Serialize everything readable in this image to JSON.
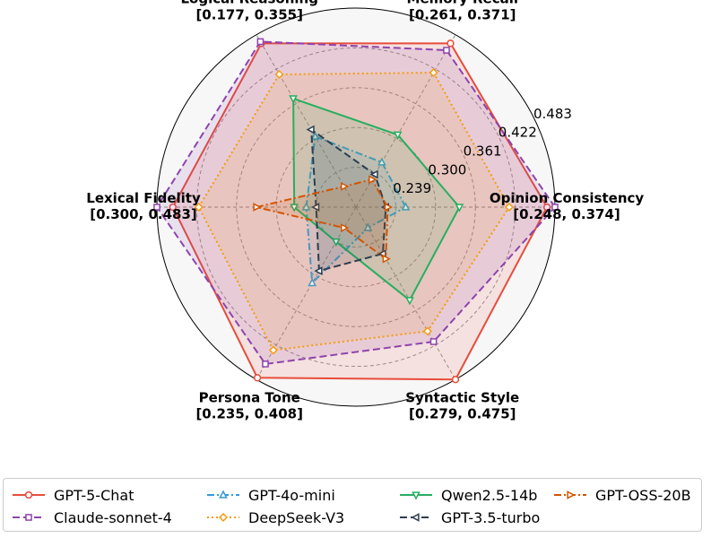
{
  "chart_data": {
    "type": "radar",
    "axes": [
      {
        "name": "Opinion Consistency",
        "range_label": "[0.248, 0.374]"
      },
      {
        "name": "Memory Recall",
        "range_label": "[0.261, 0.371]"
      },
      {
        "name": "Logical Reasoning",
        "range_label": "[0.177, 0.355]"
      },
      {
        "name": "Lexical Fidelity",
        "range_label": "[0.300, 0.483]"
      },
      {
        "name": "Persona Tone",
        "range_label": "[0.235, 0.408]"
      },
      {
        "name": "Syntactic Style",
        "range_label": "[0.279, 0.475]"
      }
    ],
    "radial_ticks": [
      "0.239",
      "0.300",
      "0.361",
      "0.422",
      "0.483"
    ],
    "radial_tick_positions": [
      0.2,
      0.4,
      0.6,
      0.8,
      1.0
    ],
    "value_scale": "normalized 0-1 radial fraction per axis",
    "series": [
      {
        "name": "GPT-5-Chat",
        "color": "#e74c3c",
        "dash": "solid",
        "marker": "circle",
        "values": [
          0.96,
          0.95,
          0.95,
          0.92,
          0.99,
          1.0
        ]
      },
      {
        "name": "Claude-sonnet-4",
        "color": "#8e44ad",
        "dash": "dashed",
        "marker": "square",
        "values": [
          1.0,
          0.91,
          0.96,
          1.0,
          0.91,
          0.78
        ]
      },
      {
        "name": "GPT-4o-mini",
        "color": "#3498db",
        "dash": "dashdot",
        "marker": "triangle-up",
        "values": [
          0.25,
          0.26,
          0.41,
          0.25,
          0.44,
          0.12
        ]
      },
      {
        "name": "DeepSeek-V3",
        "color": "#f39c12",
        "dash": "dotted",
        "marker": "diamond",
        "values": [
          0.77,
          0.78,
          0.77,
          0.79,
          0.83,
          0.72
        ]
      },
      {
        "name": "Qwen2.5-14b",
        "color": "#27ae60",
        "dash": "solid",
        "marker": "triangle-down",
        "values": [
          0.52,
          0.42,
          0.63,
          0.31,
          0.2,
          0.54
        ]
      },
      {
        "name": "GPT-3.5-turbo",
        "color": "#2c3e50",
        "dash": "dashed",
        "marker": "triangle-left",
        "values": [
          0.15,
          0.19,
          0.45,
          0.2,
          0.37,
          0.27
        ]
      },
      {
        "name": "GPT-OSS-20B",
        "color": "#d35400",
        "dash": "dashdot",
        "marker": "triangle-right",
        "values": [
          0.16,
          0.16,
          0.12,
          0.5,
          0.12,
          0.3
        ]
      }
    ]
  }
}
